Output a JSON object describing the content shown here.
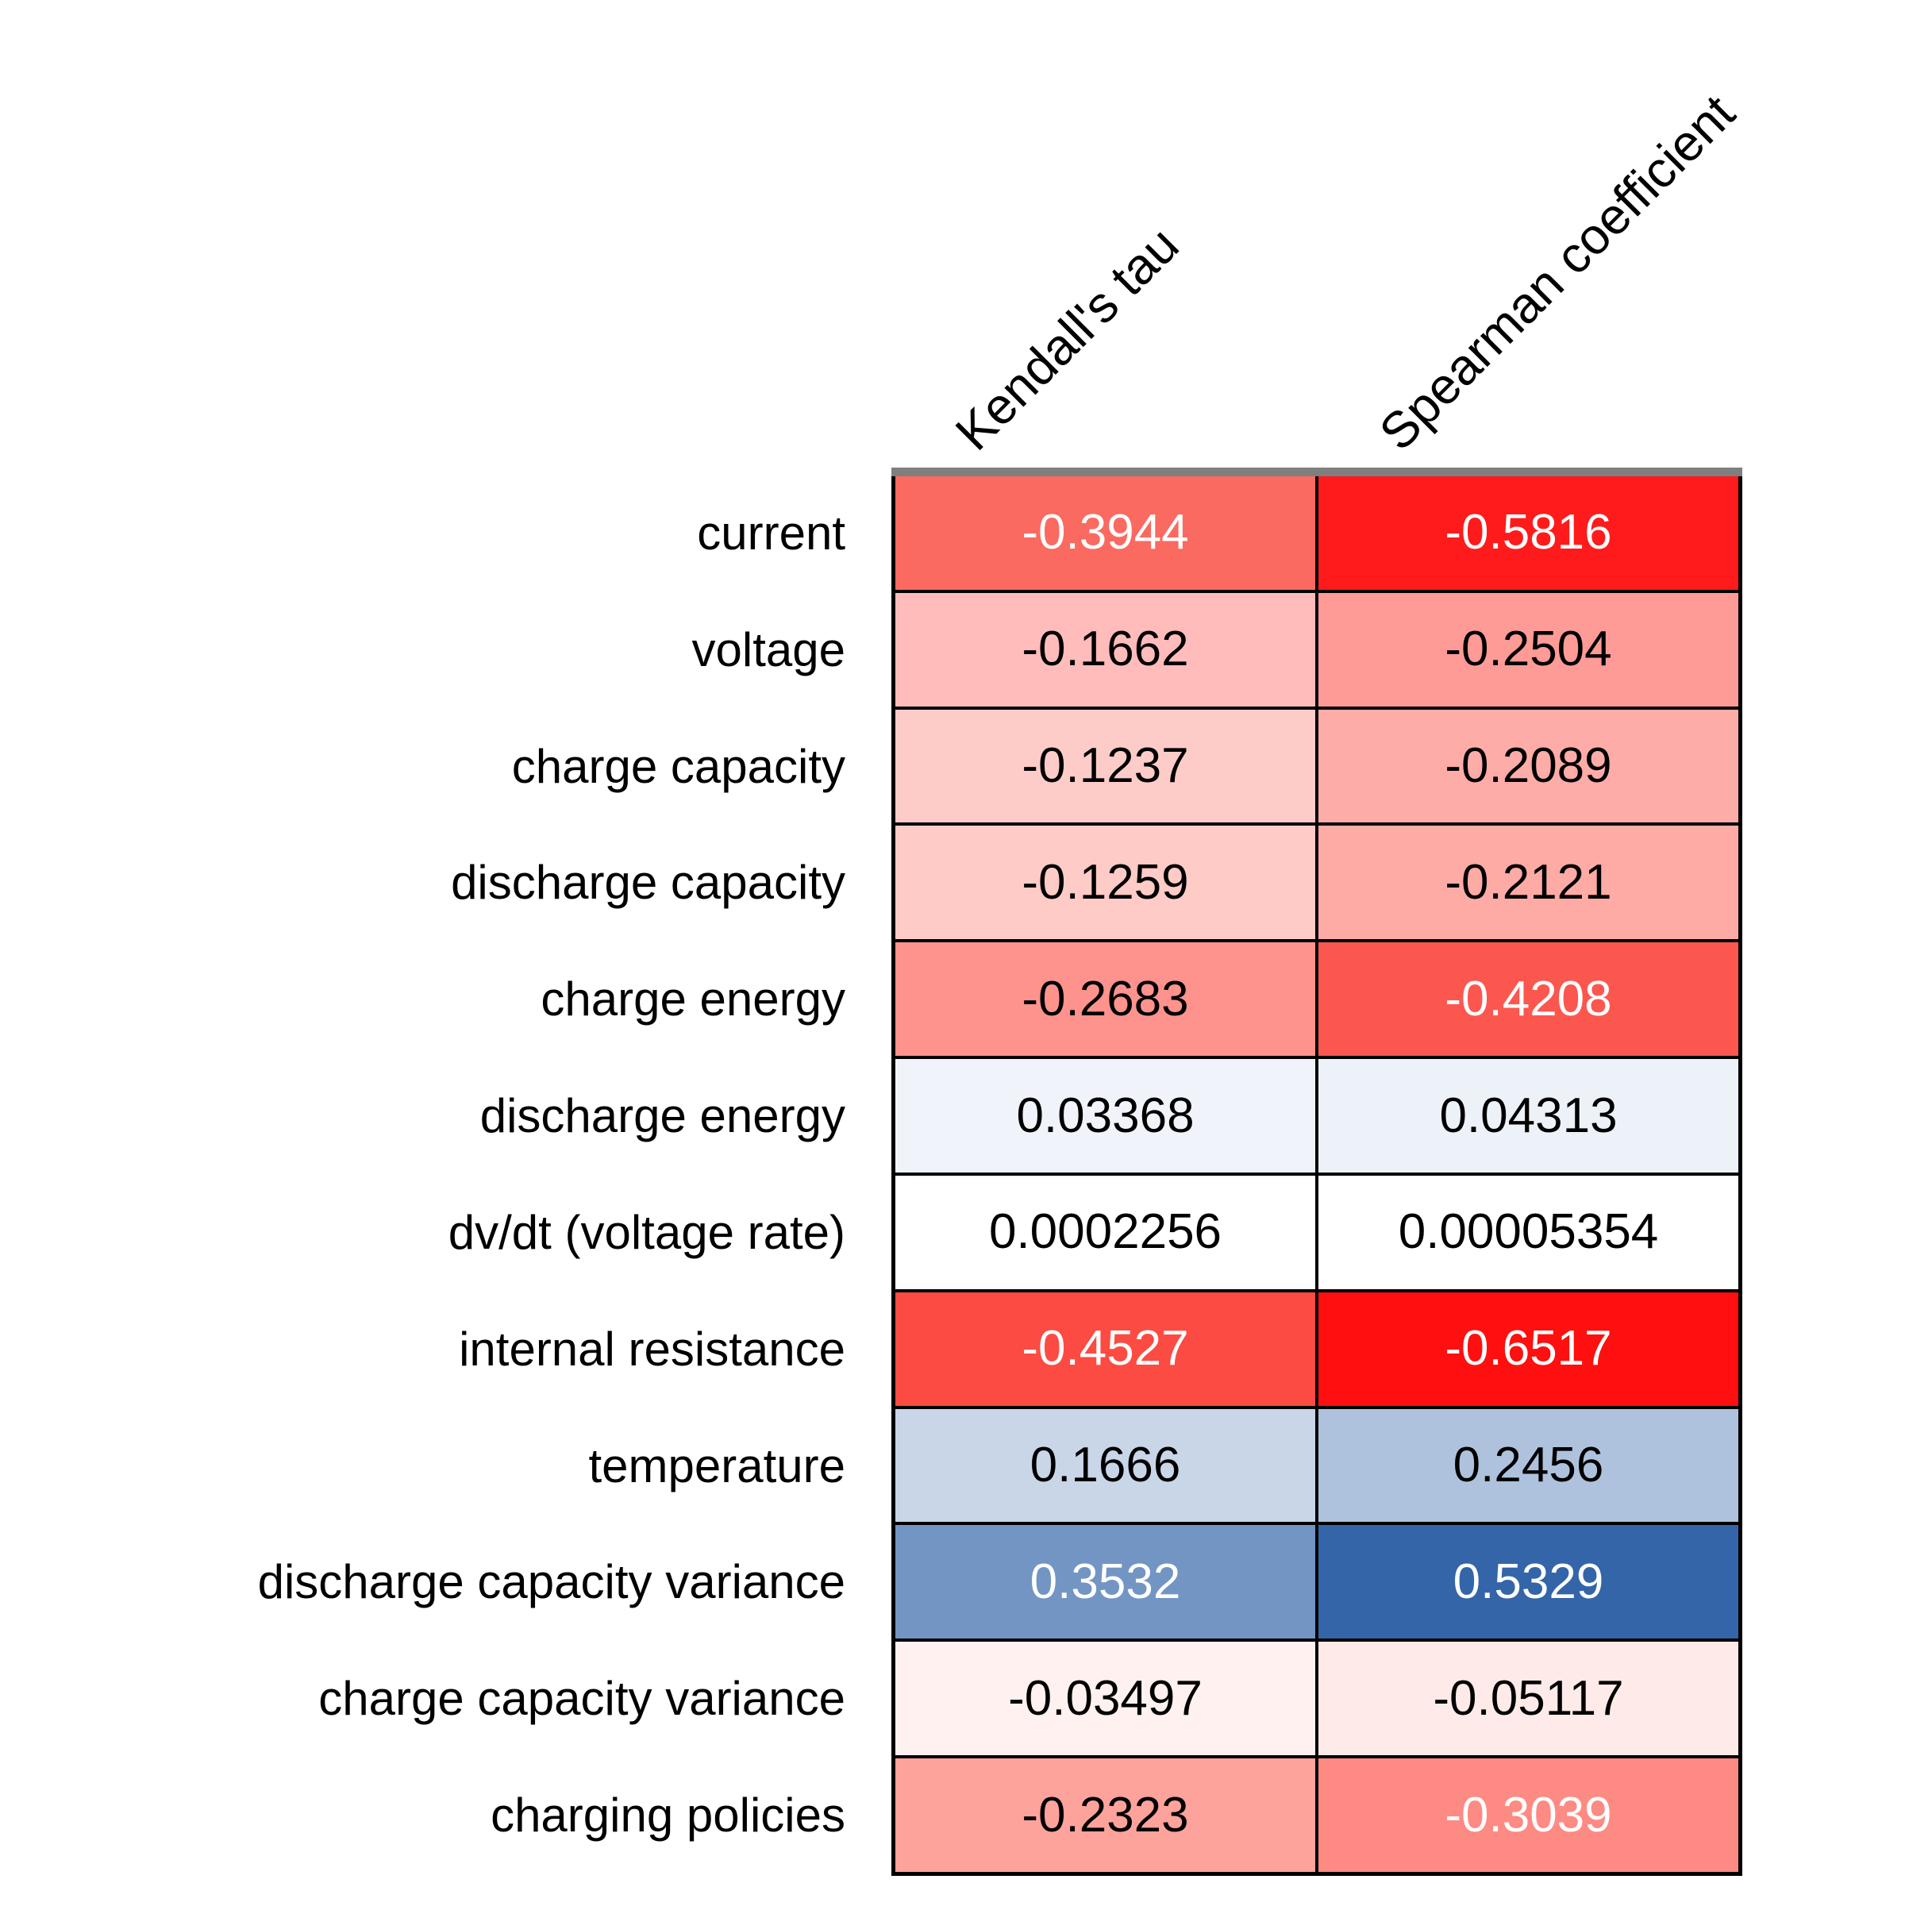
{
  "chart_data": {
    "type": "heatmap",
    "title": "",
    "xlabel": "",
    "ylabel": "",
    "legend": "none",
    "grid": "black cell borders with gray bar across the top edge",
    "colormap": "diverging red-white-blue (negative=red, positive=blue)",
    "columns": [
      "Kendall's tau",
      "Spearman coefficient"
    ],
    "rows": [
      "current",
      "voltage",
      "charge capacity",
      "discharge capacity",
      "charge energy",
      "discharge energy",
      "dv/dt (voltage rate)",
      "internal resistance",
      "temperature",
      "discharge capacity variance",
      "charge capacity variance",
      "charging policies"
    ],
    "values": [
      [
        -0.3944,
        -0.5816
      ],
      [
        -0.1662,
        -0.2504
      ],
      [
        -0.1237,
        -0.2089
      ],
      [
        -0.1259,
        -0.2121
      ],
      [
        -0.2683,
        -0.4208
      ],
      [
        0.03368,
        0.04313
      ],
      [
        0.0002256,
        5.354e-05
      ],
      [
        -0.4527,
        -0.6517
      ],
      [
        0.1666,
        0.2456
      ],
      [
        0.3532,
        0.5329
      ],
      [
        -0.03497,
        -0.05117
      ],
      [
        -0.2323,
        -0.3039
      ]
    ],
    "cells": [
      [
        {
          "text": "-0.3944",
          "bg": "#FA6A60",
          "fg": "#FFFFFF"
        },
        {
          "text": "-0.5816",
          "bg": "#FF1B1B",
          "fg": "#FFFFFF"
        }
      ],
      [
        {
          "text": "-0.1662",
          "bg": "#FFBCBA",
          "fg": "#000000"
        },
        {
          "text": "-0.2504",
          "bg": "#FE9B96",
          "fg": "#000000"
        }
      ],
      [
        {
          "text": "-0.1237",
          "bg": "#FECCC8",
          "fg": "#000000"
        },
        {
          "text": "-0.2089",
          "bg": "#FEACA7",
          "fg": "#000000"
        }
      ],
      [
        {
          "text": "-0.1259",
          "bg": "#FECBC7",
          "fg": "#000000"
        },
        {
          "text": "-0.2121",
          "bg": "#FEABA6",
          "fg": "#000000"
        }
      ],
      [
        {
          "text": "-0.2683",
          "bg": "#FD938C",
          "fg": "#000000"
        },
        {
          "text": "-0.4208",
          "bg": "#FC574F",
          "fg": "#FFFFFF"
        }
      ],
      [
        {
          "text": "0.03368",
          "bg": "#F0F4FA",
          "fg": "#000000"
        },
        {
          "text": "0.04313",
          "bg": "#EDF2F9",
          "fg": "#000000"
        }
      ],
      [
        {
          "text": "0.0002256",
          "bg": "#FFFFFF",
          "fg": "#000000"
        },
        {
          "text": "0.00005354",
          "bg": "#FFFFFF",
          "fg": "#000000"
        }
      ],
      [
        {
          "text": "-0.4527",
          "bg": "#FC4B42",
          "fg": "#FFFFFF"
        },
        {
          "text": "-0.6517",
          "bg": "#FF0F0F",
          "fg": "#FFFFFF"
        }
      ],
      [
        {
          "text": "0.1666",
          "bg": "#C9D6E8",
          "fg": "#000000"
        },
        {
          "text": "0.2456",
          "bg": "#AFC2DD",
          "fg": "#000000"
        }
      ],
      [
        {
          "text": "0.3532",
          "bg": "#7395C4",
          "fg": "#FFFFFF"
        },
        {
          "text": "0.5329",
          "bg": "#3365A8",
          "fg": "#FFFFFF"
        }
      ],
      [
        {
          "text": "-0.03497",
          "bg": "#FFF1EF",
          "fg": "#000000"
        },
        {
          "text": "-0.05117",
          "bg": "#FEEBE9",
          "fg": "#000000"
        }
      ],
      [
        {
          "text": "-0.2323",
          "bg": "#FEA29C",
          "fg": "#000000"
        },
        {
          "text": "-0.3039",
          "bg": "#FE8A84",
          "fg": "#FFFFFF"
        }
      ]
    ],
    "style_colors": {
      "top_bar": "#7F7F7F",
      "grid_lines": "#000000",
      "background": "#FFFFFF",
      "label_text": "#000000"
    }
  }
}
